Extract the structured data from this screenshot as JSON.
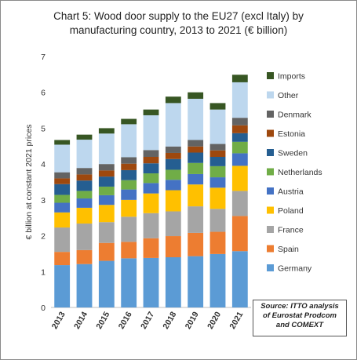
{
  "chart_data": {
    "type": "bar",
    "stacked": true,
    "title_lines": [
      "Chart 5: Wood door supply to the EU27 (excl Italy) by",
      "manufacturing country, 2013 to 2021 (€ billion)"
    ],
    "ylabel": "€ billion at constant 2021 prices",
    "xlabel": "",
    "ylim": [
      0,
      7
    ],
    "yticks": [
      "0",
      "1",
      "2",
      "3",
      "4",
      "5",
      "6",
      "7"
    ],
    "categories": [
      "2013",
      "2014",
      "2015",
      "2016",
      "2017",
      "2018",
      "2019",
      "2020",
      "2021"
    ],
    "legend_position": "right",
    "source": "Source: ITTO analysis of Eurostat Prodcom and COMEXT",
    "series": [
      {
        "name": "Germany",
        "color": "#5b9bd5",
        "values": [
          1.18,
          1.21,
          1.3,
          1.37,
          1.38,
          1.4,
          1.43,
          1.49,
          1.57
        ]
      },
      {
        "name": "Spain",
        "color": "#ed7d31",
        "values": [
          0.37,
          0.39,
          0.5,
          0.46,
          0.55,
          0.59,
          0.65,
          0.62,
          0.98
        ]
      },
      {
        "name": "France",
        "color": "#a5a5a5",
        "values": [
          0.68,
          0.74,
          0.58,
          0.7,
          0.7,
          0.69,
          0.74,
          0.64,
          0.7
        ]
      },
      {
        "name": "Poland",
        "color": "#ffc000",
        "values": [
          0.42,
          0.44,
          0.48,
          0.47,
          0.55,
          0.59,
          0.61,
          0.59,
          0.7
        ]
      },
      {
        "name": "Austria",
        "color": "#4472c4",
        "values": [
          0.27,
          0.26,
          0.27,
          0.29,
          0.29,
          0.29,
          0.29,
          0.29,
          0.35
        ]
      },
      {
        "name": "Netherlands",
        "color": "#70ad47",
        "values": [
          0.22,
          0.21,
          0.24,
          0.26,
          0.27,
          0.28,
          0.31,
          0.31,
          0.32
        ]
      },
      {
        "name": "Sweden",
        "color": "#255e91",
        "values": [
          0.3,
          0.29,
          0.28,
          0.28,
          0.28,
          0.3,
          0.29,
          0.26,
          0.24
        ]
      },
      {
        "name": "Estonia",
        "color": "#9e480e",
        "values": [
          0.16,
          0.17,
          0.17,
          0.18,
          0.18,
          0.17,
          0.17,
          0.18,
          0.22
        ]
      },
      {
        "name": "Denmark",
        "color": "#636363",
        "values": [
          0.17,
          0.18,
          0.18,
          0.18,
          0.19,
          0.18,
          0.18,
          0.18,
          0.21
        ]
      },
      {
        "name": "Other",
        "color": "#bdd7ee",
        "values": [
          0.77,
          0.79,
          0.85,
          0.92,
          0.97,
          1.21,
          1.15,
          0.96,
          0.99
        ]
      },
      {
        "name": "Imports",
        "color": "#375623",
        "values": [
          0.13,
          0.14,
          0.15,
          0.15,
          0.16,
          0.18,
          0.18,
          0.18,
          0.21
        ]
      }
    ]
  }
}
